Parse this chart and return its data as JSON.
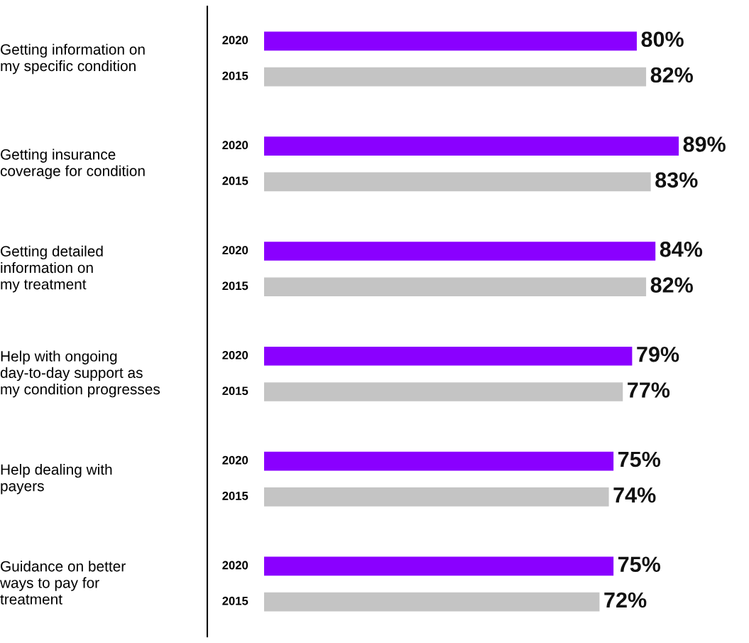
{
  "chart_data": {
    "type": "bar",
    "orientation": "horizontal",
    "categories": [
      "Getting information on\nmy specific condition",
      "Getting insurance\ncoverage for condition",
      "Getting detailed\ninformation on\nmy treatment",
      "Help with ongoing\nday-to-day support as\nmy condition progresses",
      "Help dealing with\npayers",
      "Guidance on better\nways to pay for\ntreatment"
    ],
    "series": [
      {
        "name": "2020",
        "color": "#8a00ff",
        "values": [
          80,
          89,
          84,
          79,
          75,
          75
        ],
        "value_labels": [
          "80%",
          "89%",
          "84%",
          "79%",
          "75%",
          "75%"
        ]
      },
      {
        "name": "2015",
        "color": "#c4c4c4",
        "values": [
          82,
          83,
          82,
          77,
          74,
          72
        ],
        "value_labels": [
          "82%",
          "83%",
          "82%",
          "77%",
          "74%",
          "72%"
        ]
      }
    ],
    "legend": false
  }
}
